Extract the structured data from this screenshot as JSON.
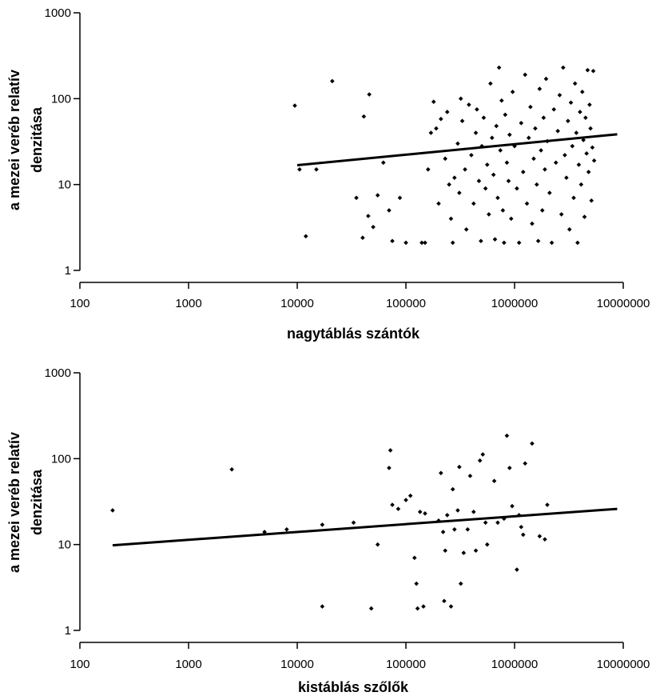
{
  "chart_data": [
    {
      "type": "scatter",
      "xscale": "log",
      "yscale": "log",
      "xlim": [
        100,
        10000000
      ],
      "ylim": [
        1,
        1000
      ],
      "xlabel": "nagytáblás szántók",
      "ylabel_lines": [
        "a mezei veréb relatív",
        "denzitása"
      ],
      "xticks": [
        "100",
        "1000",
        "10000",
        "100000",
        "1000000",
        "10000000"
      ],
      "yticks": [
        "1",
        "10",
        "100",
        "1000"
      ],
      "grid": false,
      "trendline": {
        "x": [
          10000,
          8800000
        ],
        "y": [
          16.8,
          38.5
        ]
      },
      "points": [
        [
          9500,
          83
        ],
        [
          10500,
          15
        ],
        [
          12000,
          2.5
        ],
        [
          15000,
          15
        ],
        [
          21000,
          160
        ],
        [
          35000,
          7
        ],
        [
          40000,
          2.4
        ],
        [
          41000,
          62
        ],
        [
          45000,
          4.3
        ],
        [
          46000,
          112
        ],
        [
          50000,
          3.2
        ],
        [
          55000,
          7.5
        ],
        [
          62000,
          18
        ],
        [
          70000,
          5
        ],
        [
          75000,
          2.2
        ],
        [
          88000,
          7
        ],
        [
          100000,
          2.1
        ],
        [
          140000,
          2.1
        ],
        [
          150000,
          2.1
        ],
        [
          160000,
          15
        ],
        [
          170000,
          40
        ],
        [
          180000,
          92
        ],
        [
          190000,
          45
        ],
        [
          200000,
          6
        ],
        [
          210000,
          58
        ],
        [
          230000,
          20
        ],
        [
          240000,
          70
        ],
        [
          250000,
          10
        ],
        [
          260000,
          4
        ],
        [
          270000,
          2.1
        ],
        [
          280000,
          12
        ],
        [
          300000,
          30
        ],
        [
          310000,
          8
        ],
        [
          320000,
          100
        ],
        [
          330000,
          55
        ],
        [
          350000,
          15
        ],
        [
          360000,
          3
        ],
        [
          380000,
          85
        ],
        [
          400000,
          22
        ],
        [
          420000,
          6
        ],
        [
          440000,
          40
        ],
        [
          450000,
          75
        ],
        [
          470000,
          11
        ],
        [
          490000,
          2.2
        ],
        [
          500000,
          28
        ],
        [
          520000,
          60
        ],
        [
          540000,
          9
        ],
        [
          560000,
          17
        ],
        [
          580000,
          4.5
        ],
        [
          600000,
          150
        ],
        [
          620000,
          35
        ],
        [
          640000,
          13
        ],
        [
          660000,
          2.3
        ],
        [
          680000,
          48
        ],
        [
          700000,
          7
        ],
        [
          720000,
          230
        ],
        [
          740000,
          25
        ],
        [
          760000,
          95
        ],
        [
          780000,
          5
        ],
        [
          800000,
          2.1
        ],
        [
          820000,
          65
        ],
        [
          850000,
          18
        ],
        [
          880000,
          11
        ],
        [
          900000,
          38
        ],
        [
          930000,
          4
        ],
        [
          960000,
          120
        ],
        [
          1000000,
          28
        ],
        [
          1050000,
          9
        ],
        [
          1100000,
          2.1
        ],
        [
          1150000,
          52
        ],
        [
          1200000,
          14
        ],
        [
          1250000,
          190
        ],
        [
          1300000,
          6
        ],
        [
          1350000,
          35
        ],
        [
          1400000,
          80
        ],
        [
          1450000,
          3.5
        ],
        [
          1500000,
          20
        ],
        [
          1550000,
          45
        ],
        [
          1600000,
          10
        ],
        [
          1650000,
          2.2
        ],
        [
          1700000,
          130
        ],
        [
          1750000,
          25
        ],
        [
          1800000,
          5
        ],
        [
          1850000,
          60
        ],
        [
          1900000,
          15
        ],
        [
          1950000,
          170
        ],
        [
          2000000,
          32
        ],
        [
          2100000,
          8
        ],
        [
          2200000,
          2.1
        ],
        [
          2300000,
          75
        ],
        [
          2400000,
          18
        ],
        [
          2500000,
          42
        ],
        [
          2600000,
          110
        ],
        [
          2700000,
          4.5
        ],
        [
          2800000,
          230
        ],
        [
          2900000,
          22
        ],
        [
          3000000,
          12
        ],
        [
          3100000,
          55
        ],
        [
          3200000,
          3
        ],
        [
          3300000,
          90
        ],
        [
          3400000,
          28
        ],
        [
          3500000,
          7
        ],
        [
          3600000,
          150
        ],
        [
          3700000,
          40
        ],
        [
          3800000,
          2.1
        ],
        [
          3900000,
          17
        ],
        [
          4000000,
          70
        ],
        [
          4100000,
          10
        ],
        [
          4200000,
          120
        ],
        [
          4300000,
          33
        ],
        [
          4400000,
          4.2
        ],
        [
          4500000,
          60
        ],
        [
          4600000,
          23
        ],
        [
          4700000,
          215
        ],
        [
          4800000,
          14
        ],
        [
          4900000,
          85
        ],
        [
          5000000,
          45
        ],
        [
          5100000,
          6.5
        ],
        [
          5200000,
          27
        ],
        [
          5300000,
          210
        ],
        [
          5400000,
          19
        ]
      ]
    },
    {
      "type": "scatter",
      "xscale": "log",
      "yscale": "log",
      "xlim": [
        100,
        10000000
      ],
      "ylim": [
        1,
        1000
      ],
      "xlabel": "kistáblás szőlők",
      "ylabel_lines": [
        "a mezei veréb relatív",
        "denzitása"
      ],
      "xticks": [
        "100",
        "1000",
        "10000",
        "100000",
        "1000000",
        "10000000"
      ],
      "yticks": [
        "1",
        "10",
        "100",
        "1000"
      ],
      "grid": false,
      "trendline": {
        "x": [
          200,
          8800000
        ],
        "y": [
          9.8,
          26
        ]
      },
      "points": [
        [
          200,
          25
        ],
        [
          2500,
          75
        ],
        [
          5000,
          14
        ],
        [
          8000,
          15
        ],
        [
          17000,
          1.9
        ],
        [
          17000,
          17
        ],
        [
          33000,
          18
        ],
        [
          48000,
          1.8
        ],
        [
          55000,
          10
        ],
        [
          70000,
          78
        ],
        [
          72000,
          125
        ],
        [
          75000,
          29
        ],
        [
          85000,
          26
        ],
        [
          100000,
          33
        ],
        [
          110000,
          37
        ],
        [
          120000,
          7
        ],
        [
          125000,
          3.5
        ],
        [
          128000,
          1.8
        ],
        [
          135000,
          24
        ],
        [
          145000,
          1.9
        ],
        [
          150000,
          23
        ],
        [
          200000,
          19
        ],
        [
          210000,
          68
        ],
        [
          220000,
          14
        ],
        [
          225000,
          2.2
        ],
        [
          230000,
          8.5
        ],
        [
          240000,
          22
        ],
        [
          260000,
          1.9
        ],
        [
          270000,
          44
        ],
        [
          280000,
          15
        ],
        [
          300000,
          25
        ],
        [
          310000,
          80
        ],
        [
          320000,
          3.5
        ],
        [
          340000,
          8
        ],
        [
          370000,
          15
        ],
        [
          390000,
          63
        ],
        [
          420000,
          24
        ],
        [
          440000,
          8.5
        ],
        [
          480000,
          95
        ],
        [
          510000,
          112
        ],
        [
          540000,
          18
        ],
        [
          560000,
          10
        ],
        [
          650000,
          55
        ],
        [
          700000,
          18
        ],
        [
          800000,
          20
        ],
        [
          850000,
          185
        ],
        [
          900000,
          78
        ],
        [
          950000,
          28
        ],
        [
          1050000,
          5.1
        ],
        [
          1100000,
          22
        ],
        [
          1150000,
          16
        ],
        [
          1200000,
          13
        ],
        [
          1250000,
          88
        ],
        [
          1450000,
          150
        ],
        [
          1700000,
          12.5
        ],
        [
          1900000,
          11.5
        ],
        [
          2000000,
          29
        ]
      ]
    }
  ]
}
